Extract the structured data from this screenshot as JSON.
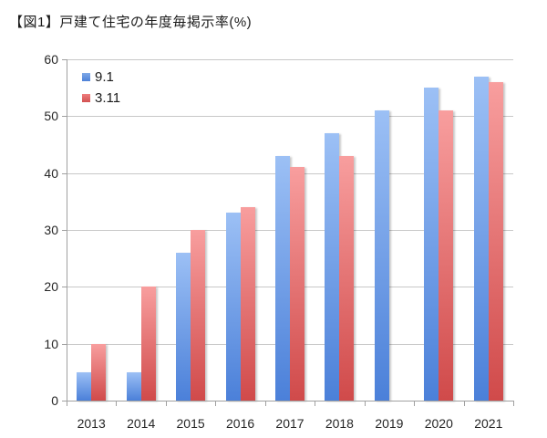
{
  "title": "【図1】戸建て住宅の年度毎掲示率(%)",
  "chart_data": {
    "type": "bar",
    "title": "【図1】戸建て住宅の年度毎掲示率(%)",
    "categories": [
      "2013",
      "2014",
      "2015",
      "2016",
      "2017",
      "2018",
      "2019",
      "2020",
      "2021"
    ],
    "series": [
      {
        "name": "9.1",
        "values": [
          5,
          5,
          26,
          33,
          43,
          47,
          51,
          55,
          57
        ],
        "color_top": "#9CC0F5",
        "color_bottom": "#4B80D9",
        "legend_color_top": "#7FA9E7",
        "legend_color_bottom": "#4E82D8"
      },
      {
        "name": "3.11",
        "values": [
          10,
          20,
          30,
          34,
          41,
          43,
          null,
          51,
          56
        ],
        "color_top": "#F89E9E",
        "color_bottom": "#D04A4A",
        "legend_color_top": "#EE7D7D",
        "legend_color_bottom": "#D25252"
      }
    ],
    "xlabel": "",
    "ylabel": "",
    "ylim": [
      0,
      60
    ],
    "yticks": [
      0,
      10,
      20,
      30,
      40,
      50,
      60
    ],
    "grid": true,
    "legend_position": "top-left-inside",
    "grid_color": "#c8c8c8",
    "axis_color": "#a0a0a0",
    "text_color": "#262626"
  }
}
